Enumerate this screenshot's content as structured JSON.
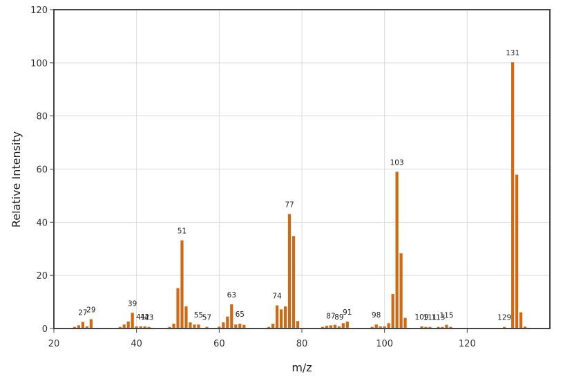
{
  "colors": {
    "bar": "#d4670f",
    "grid": "#dcdcdc",
    "frame": "#444444"
  },
  "chart_data": {
    "type": "bar",
    "title": "",
    "xlabel": "m/z",
    "ylabel": "Relative Intensity",
    "xlim": [
      20,
      140
    ],
    "ylim": [
      0,
      120
    ],
    "xticks": [
      20,
      40,
      60,
      80,
      100,
      120
    ],
    "yticks": [
      0,
      20,
      40,
      60,
      80,
      100,
      120
    ],
    "grid": true,
    "legend": "none",
    "x": [
      25,
      26,
      27,
      28,
      29,
      36,
      37,
      38,
      39,
      40,
      41,
      42,
      43,
      48,
      49,
      50,
      51,
      52,
      53,
      54,
      55,
      57,
      60,
      61,
      62,
      63,
      64,
      65,
      66,
      72,
      73,
      74,
      75,
      76,
      77,
      78,
      79,
      85,
      86,
      87,
      88,
      89,
      90,
      91,
      97,
      98,
      99,
      100,
      101,
      102,
      103,
      104,
      105,
      109,
      110,
      111,
      113,
      114,
      115,
      116,
      129,
      131,
      132,
      133,
      134
    ],
    "values": [
      0.6,
      1.2,
      2.5,
      0.8,
      3.5,
      0.6,
      1.5,
      2.6,
      5.9,
      0.8,
      0.8,
      0.8,
      0.6,
      0.6,
      1.8,
      15.2,
      33.2,
      8.3,
      2.3,
      1.5,
      1.5,
      0.6,
      0.7,
      2.3,
      4.5,
      9.1,
      1.5,
      1.8,
      1.4,
      0.6,
      1.8,
      8.7,
      7.2,
      8.3,
      43.1,
      34.8,
      2.8,
      0.6,
      1.0,
      1.2,
      1.4,
      0.8,
      2.0,
      2.6,
      0.6,
      1.5,
      0.8,
      0.8,
      2.0,
      13.0,
      59.0,
      28.3,
      4.0,
      0.8,
      0.6,
      0.6,
      0.6,
      0.6,
      1.4,
      0.6,
      0.6,
      100.2,
      57.9,
      6.1,
      0.7
    ],
    "peak_labels": [
      {
        "x": 27,
        "y": 2.5,
        "text": "27"
      },
      {
        "x": 29,
        "y": 3.5,
        "text": "29"
      },
      {
        "x": 39,
        "y": 5.9,
        "text": "39"
      },
      {
        "x": 41,
        "y": 0.8,
        "text": "41"
      },
      {
        "x": 42,
        "y": 0.8,
        "text": "42"
      },
      {
        "x": 43,
        "y": 0.6,
        "text": "43"
      },
      {
        "x": 51,
        "y": 33.2,
        "text": "51"
      },
      {
        "x": 55,
        "y": 1.5,
        "text": "55"
      },
      {
        "x": 57,
        "y": 0.6,
        "text": "57"
      },
      {
        "x": 63,
        "y": 9.1,
        "text": "63"
      },
      {
        "x": 65,
        "y": 1.8,
        "text": "65"
      },
      {
        "x": 74,
        "y": 8.7,
        "text": "74"
      },
      {
        "x": 77,
        "y": 43.1,
        "text": "77"
      },
      {
        "x": 87,
        "y": 1.2,
        "text": "87"
      },
      {
        "x": 89,
        "y": 0.8,
        "text": "89"
      },
      {
        "x": 91,
        "y": 2.6,
        "text": "91"
      },
      {
        "x": 98,
        "y": 1.5,
        "text": "98"
      },
      {
        "x": 103,
        "y": 59.0,
        "text": "103"
      },
      {
        "x": 109,
        "y": 0.8,
        "text": "109"
      },
      {
        "x": 111,
        "y": 0.6,
        "text": "111"
      },
      {
        "x": 113,
        "y": 0.6,
        "text": "113"
      },
      {
        "x": 115,
        "y": 1.4,
        "text": "115"
      },
      {
        "x": 129,
        "y": 0.6,
        "text": "129"
      },
      {
        "x": 131,
        "y": 100.2,
        "text": "131"
      }
    ]
  }
}
